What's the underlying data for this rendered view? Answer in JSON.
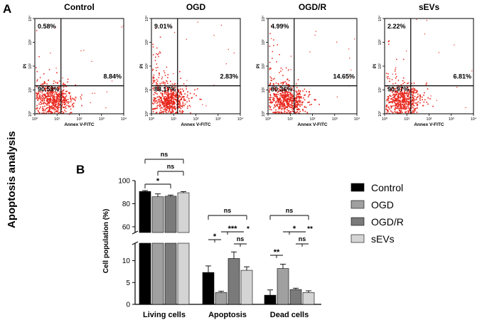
{
  "figure": {
    "panel_a_letter": "A",
    "panel_b_letter": "B",
    "side_title": "Apoptosis analysis"
  },
  "colors": {
    "dot": "#e8251b",
    "Control": "#000000",
    "OGD": "#a0a0a0",
    "OGD/R": "#7a7a7a",
    "sEVs": "#d4d4d4"
  },
  "chart_data": [
    {
      "type": "scatter",
      "title": "Control",
      "xlabel": "Annex V-FITC",
      "ylabel": "PI",
      "xscale": "log",
      "yscale": "log",
      "xlim": [
        1,
        10000
      ],
      "ylim": [
        1,
        10000
      ],
      "x_ticks": [
        "10⁰",
        "10¹",
        "10²",
        "10³",
        "10⁴"
      ],
      "y_ticks": [
        "10⁰",
        "10¹",
        "10²",
        "10³",
        "10⁴"
      ],
      "quadrants": {
        "UL": "0.58%",
        "UR": "",
        "LL": "90.58%",
        "LR": "8.84%"
      },
      "quadrant_values": {
        "UL": 0.58,
        "LL": 90.58,
        "LR": 8.84
      }
    },
    {
      "type": "scatter",
      "title": "OGD",
      "xlabel": "Annex V-FITC",
      "ylabel": "PI",
      "xscale": "log",
      "yscale": "log",
      "xlim": [
        1,
        10000
      ],
      "ylim": [
        1,
        10000
      ],
      "x_ticks": [
        "10⁰",
        "10¹",
        "10²",
        "10³",
        "10⁴"
      ],
      "y_ticks": [
        "10⁰",
        "10¹",
        "10²",
        "10³",
        "10⁴"
      ],
      "quadrants": {
        "UL": "9.01%",
        "UR": "",
        "LL": "88.17%",
        "LR": "2.83%"
      },
      "quadrant_values": {
        "UL": 9.01,
        "LL": 88.17,
        "LR": 2.83
      }
    },
    {
      "type": "scatter",
      "title": "OGD/R",
      "xlabel": "Annex V-FITC",
      "ylabel": "PI",
      "xscale": "log",
      "yscale": "log",
      "xlim": [
        1,
        10000
      ],
      "ylim": [
        1,
        10000
      ],
      "x_ticks": [
        "10⁰",
        "10¹",
        "10²",
        "10³",
        "10⁴"
      ],
      "y_ticks": [
        "10⁰",
        "10¹",
        "10²",
        "10³",
        "10⁴"
      ],
      "quadrants": {
        "UL": "4.99%",
        "UR": "",
        "LL": "80.36%",
        "LR": "14.65%"
      },
      "quadrant_values": {
        "UL": 4.99,
        "LL": 80.36,
        "LR": 14.65
      }
    },
    {
      "type": "scatter",
      "title": "sEVs",
      "xlabel": "Annex V-FITC",
      "ylabel": "PI",
      "xscale": "log",
      "yscale": "log",
      "xlim": [
        1,
        10000
      ],
      "ylim": [
        1,
        10000
      ],
      "x_ticks": [
        "10⁰",
        "10¹",
        "10²",
        "10³",
        "10⁴"
      ],
      "y_ticks": [
        "10⁰",
        "10¹",
        "10²",
        "10³",
        "10⁴"
      ],
      "quadrants": {
        "UL": "2.22%",
        "UR": "",
        "LL": "90.97%",
        "LR": "6.81%"
      },
      "quadrant_values": {
        "UL": 2.22,
        "LL": 90.97,
        "LR": 6.81
      }
    },
    {
      "type": "bar",
      "title": "",
      "ylabel": "Cell population (%)",
      "xlabel": "",
      "categories": [
        "Living cells",
        "Apoptosis",
        "Dead cells"
      ],
      "series": [
        {
          "name": "Control",
          "values": [
            90.6,
            7.3,
            2.1
          ],
          "errors": [
            0.8,
            1.5,
            1.2
          ]
        },
        {
          "name": "OGD",
          "values": [
            86.0,
            2.7,
            8.2
          ],
          "errors": [
            2.5,
            0.3,
            1.0
          ]
        },
        {
          "name": "OGD/R",
          "values": [
            86.5,
            10.5,
            3.4
          ],
          "errors": [
            1.0,
            1.5,
            0.3
          ]
        },
        {
          "name": "sEVs",
          "values": [
            89.5,
            7.8,
            2.7
          ],
          "errors": [
            1.0,
            0.8,
            0.4
          ]
        }
      ],
      "y_axis_break": {
        "lower": [
          0,
          14
        ],
        "upper": [
          55,
          100
        ]
      },
      "y_ticks_lower": [
        "0",
        "5",
        "10"
      ],
      "y_ticks_upper": [
        "60",
        "80",
        "100"
      ],
      "legend_position": "right",
      "significance": [
        {
          "category": "Living cells",
          "from": "Control",
          "to": "OGD/R",
          "label": "*"
        },
        {
          "category": "Living cells",
          "from": "OGD",
          "to": "sEVs",
          "label": "ns"
        },
        {
          "category": "Living cells",
          "from": "Control",
          "to": "sEVs",
          "label": "ns"
        },
        {
          "category": "Apoptosis",
          "from": "Control",
          "to": "OGD",
          "label": "*"
        },
        {
          "category": "Apoptosis",
          "from": "OGD",
          "to": "OGD/R",
          "label": "***"
        },
        {
          "category": "Apoptosis",
          "from": "OGD/R",
          "to": "sEVs",
          "label": "ns"
        },
        {
          "category": "Apoptosis",
          "from": "OGD/R",
          "to": "sEVs",
          "label": "*"
        },
        {
          "category": "Apoptosis",
          "from": "Control",
          "to": "sEVs",
          "label": "ns"
        },
        {
          "category": "Dead cells",
          "from": "Control",
          "to": "OGD",
          "label": "**"
        },
        {
          "category": "Dead cells",
          "from": "OGD",
          "to": "OGD/R",
          "label": "*"
        },
        {
          "category": "Dead cells",
          "from": "OGD/R",
          "to": "sEVs",
          "label": "ns"
        },
        {
          "category": "Dead cells",
          "from": "OGD/R",
          "to": "sEVs",
          "label": "**"
        },
        {
          "category": "Dead cells",
          "from": "Control",
          "to": "sEVs",
          "label": "ns"
        }
      ]
    }
  ]
}
